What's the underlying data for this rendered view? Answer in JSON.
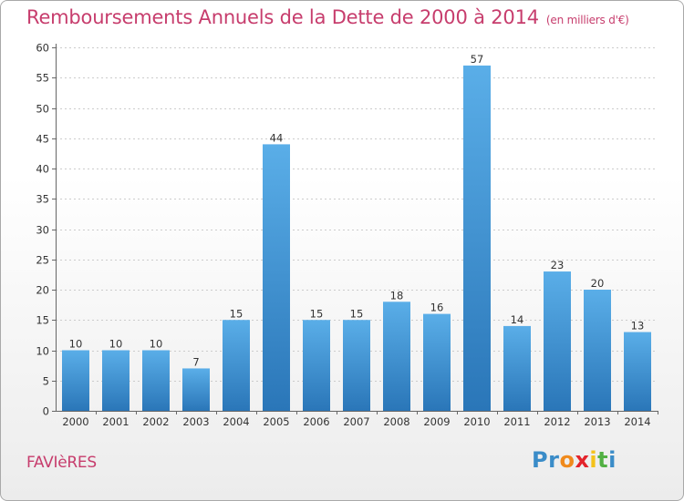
{
  "title": "Remboursements Annuels de la Dette de 2000 à 2014",
  "subtitle": "(en milliers d'€)",
  "commune": "FAVIèRES",
  "logo": {
    "text": "Proxiti",
    "letters": [
      "P",
      "r",
      "o",
      "x",
      "i",
      "t",
      "i"
    ],
    "colors": [
      "#3a8cc8",
      "#3a8cc8",
      "#f08a1c",
      "#e3232b",
      "#f4c21b",
      "#52b043",
      "#3a8cc8"
    ]
  },
  "colors": {
    "bar_top": "#5aaee8",
    "bar_bottom": "#2a76b8",
    "grid": "#cccccc",
    "axis": "#666666",
    "accent": "#c73d6d"
  },
  "chart_data": {
    "type": "bar",
    "title": "Remboursements Annuels de la Dette de 2000 à 2014",
    "subtitle": "(en milliers d'€)",
    "categories": [
      "2000",
      "2001",
      "2002",
      "2003",
      "2004",
      "2005",
      "2006",
      "2007",
      "2008",
      "2009",
      "2010",
      "2011",
      "2012",
      "2013",
      "2014"
    ],
    "values": [
      10,
      10,
      10,
      7,
      15,
      44,
      15,
      15,
      18,
      16,
      57,
      14,
      23,
      20,
      13
    ],
    "ylim": [
      0,
      60
    ],
    "yticks": [
      0,
      5,
      10,
      15,
      20,
      25,
      30,
      35,
      40,
      45,
      50,
      55,
      60
    ],
    "grid": true
  }
}
